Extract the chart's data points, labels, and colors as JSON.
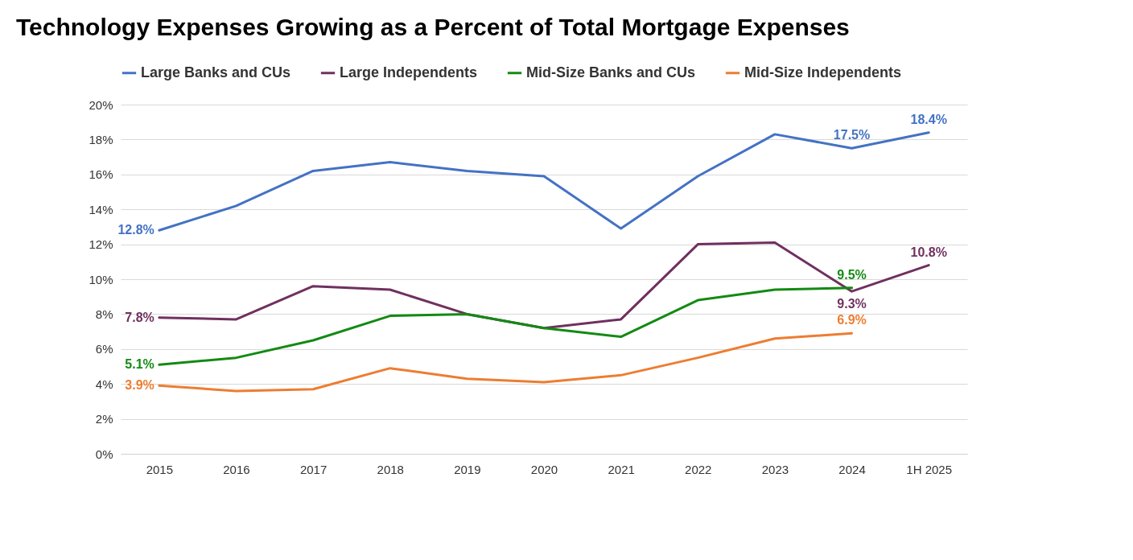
{
  "chart_data": {
    "type": "line",
    "title": "Technology Expenses Growing as a Percent of Total Mortgage Expenses",
    "categories": [
      "2015",
      "2016",
      "2017",
      "2018",
      "2019",
      "2020",
      "2021",
      "2022",
      "2023",
      "2024",
      "1H 2025"
    ],
    "series": [
      {
        "name": "Large Banks and CUs",
        "color": "#4472c4",
        "values": [
          12.8,
          14.2,
          16.2,
          16.7,
          16.2,
          15.9,
          12.9,
          15.9,
          18.3,
          17.5,
          18.4
        ],
        "value_labels": [
          "12.8%",
          null,
          null,
          null,
          null,
          null,
          null,
          null,
          null,
          "17.5%",
          "18.4%"
        ]
      },
      {
        "name": "Large Independents",
        "color": "#70305f",
        "values": [
          7.8,
          7.7,
          9.6,
          9.4,
          8.0,
          7.2,
          7.7,
          12.0,
          12.1,
          9.3,
          10.8
        ],
        "value_labels": [
          "7.8%",
          null,
          null,
          null,
          null,
          null,
          null,
          null,
          null,
          "9.3%",
          "10.8%"
        ]
      },
      {
        "name": "Mid-Size Banks and CUs",
        "color": "#138a13",
        "values": [
          5.1,
          5.5,
          6.5,
          7.9,
          8.0,
          7.2,
          6.7,
          8.8,
          9.4,
          9.5,
          null
        ],
        "value_labels": [
          "5.1%",
          null,
          null,
          null,
          null,
          null,
          null,
          null,
          null,
          "9.5%",
          null
        ]
      },
      {
        "name": "Mid-Size Independents",
        "color": "#ed7d31",
        "values": [
          3.9,
          3.6,
          3.7,
          4.9,
          4.3,
          4.1,
          4.5,
          5.5,
          6.6,
          6.9,
          null
        ],
        "value_labels": [
          "3.9%",
          null,
          null,
          null,
          null,
          null,
          null,
          null,
          null,
          "6.9%",
          null
        ]
      }
    ],
    "ylim": [
      0,
      20
    ],
    "yticks": [
      {
        "value": 0,
        "label": "0%"
      },
      {
        "value": 2,
        "label": "2%"
      },
      {
        "value": 4,
        "label": "4%"
      },
      {
        "value": 6,
        "label": "6%"
      },
      {
        "value": 8,
        "label": "8%"
      },
      {
        "value": 10,
        "label": "10%"
      },
      {
        "value": 12,
        "label": "12%"
      },
      {
        "value": 14,
        "label": "14%"
      },
      {
        "value": 16,
        "label": "16%"
      },
      {
        "value": 18,
        "label": "18%"
      },
      {
        "value": 20,
        "label": "20%"
      }
    ],
    "grid": "y",
    "legend": "top"
  }
}
